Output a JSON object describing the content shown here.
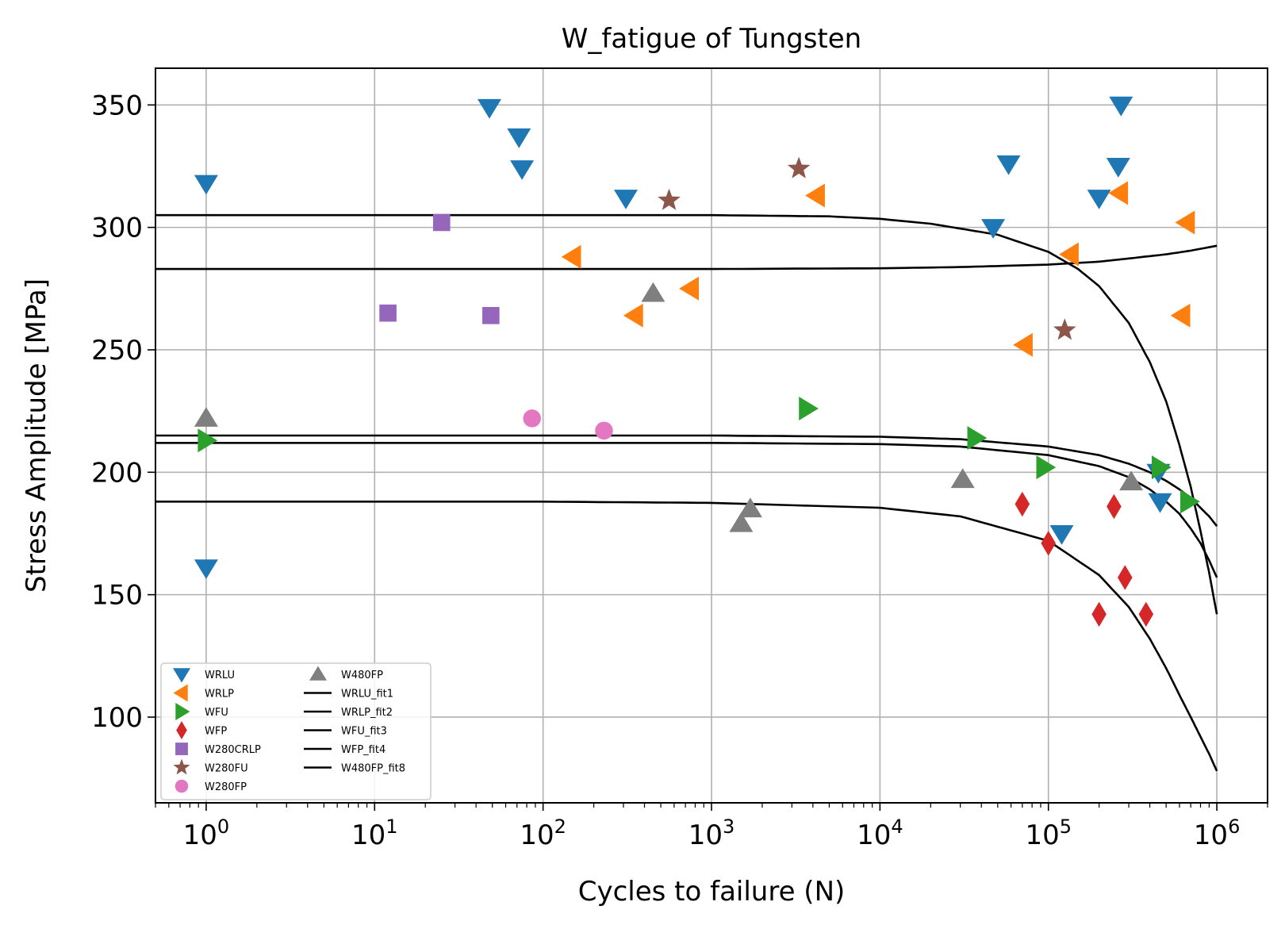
{
  "chart_data": {
    "type": "scatter",
    "title": "W_fatigue of Tungsten",
    "xlabel": "Cycles to failure (N)",
    "ylabel": "Stress Amplitude [MPa]",
    "xscale": "log",
    "xlim": [
      0.5,
      2000000
    ],
    "ylim": [
      65,
      365
    ],
    "grid": true,
    "legend_position": "lower-left",
    "xtick_labels": [
      {
        "base": "10",
        "exp": "0",
        "value": 1
      },
      {
        "base": "10",
        "exp": "1",
        "value": 10
      },
      {
        "base": "10",
        "exp": "2",
        "value": 100
      },
      {
        "base": "10",
        "exp": "3",
        "value": 1000
      },
      {
        "base": "10",
        "exp": "4",
        "value": 10000
      },
      {
        "base": "10",
        "exp": "5",
        "value": 100000
      },
      {
        "base": "10",
        "exp": "6",
        "value": 1000000
      }
    ],
    "ytick_labels": [
      "100",
      "150",
      "200",
      "250",
      "300",
      "350"
    ],
    "yticks": [
      100,
      150,
      200,
      250,
      300,
      350
    ],
    "series": [
      {
        "name": "WRLU",
        "marker": "triangle-down",
        "color": "#1f77b4",
        "points": [
          [
            1,
            318
          ],
          [
            1,
            161
          ],
          [
            48,
            349
          ],
          [
            72,
            337
          ],
          [
            75,
            324
          ],
          [
            310,
            312
          ],
          [
            47000,
            300
          ],
          [
            58000,
            326
          ],
          [
            120000,
            175
          ],
          [
            200000,
            312
          ],
          [
            270000,
            350
          ],
          [
            260000,
            325
          ],
          [
            450000,
            200
          ],
          [
            460000,
            188
          ]
        ]
      },
      {
        "name": "WRLP",
        "marker": "triangle-left",
        "color": "#ff7f0e",
        "points": [
          [
            150,
            288
          ],
          [
            350,
            264
          ],
          [
            750,
            275
          ],
          [
            4200,
            313
          ],
          [
            72000,
            252
          ],
          [
            135000,
            289
          ],
          [
            265000,
            314
          ],
          [
            660000,
            302
          ],
          [
            620000,
            264
          ]
        ]
      },
      {
        "name": "WFU",
        "marker": "triangle-right",
        "color": "#2ca02c",
        "points": [
          [
            1,
            213
          ],
          [
            3700,
            226
          ],
          [
            37000,
            214
          ],
          [
            95000,
            202
          ],
          [
            460000,
            202
          ],
          [
            680000,
            188
          ]
        ]
      },
      {
        "name": "WFP",
        "marker": "diamond",
        "color": "#d62728",
        "points": [
          [
            70000,
            187
          ],
          [
            100000,
            171
          ],
          [
            245000,
            186
          ],
          [
            200000,
            142
          ],
          [
            285000,
            157
          ],
          [
            380000,
            142
          ]
        ]
      },
      {
        "name": "W280CRLP",
        "marker": "square",
        "color": "#9467bd",
        "points": [
          [
            12,
            265
          ],
          [
            25,
            302
          ],
          [
            49,
            264
          ]
        ]
      },
      {
        "name": "W280FU",
        "marker": "star",
        "color": "#8c564b",
        "points": [
          [
            560,
            311
          ],
          [
            3300,
            324
          ],
          [
            125000,
            258
          ]
        ]
      },
      {
        "name": "W280FP",
        "marker": "circle",
        "color": "#e377c2",
        "points": [
          [
            86,
            222
          ],
          [
            230,
            217
          ]
        ]
      },
      {
        "name": "W480FP",
        "marker": "triangle-up",
        "color": "#7f7f7f",
        "points": [
          [
            1,
            222
          ],
          [
            450,
            273
          ],
          [
            1500,
            179
          ],
          [
            1700,
            185
          ],
          [
            31000,
            197
          ],
          [
            310000,
            196
          ]
        ]
      }
    ],
    "fits": [
      {
        "name": "WRLU_fit1",
        "color": "#000000",
        "x": [
          0.5,
          10,
          100,
          1000,
          5000,
          10000,
          20000,
          50000,
          100000,
          150000,
          200000,
          300000,
          400000,
          500000,
          600000,
          700000,
          800000,
          900000,
          1000000
        ],
        "y": [
          305,
          305,
          305,
          305,
          304.5,
          303.5,
          301.5,
          297,
          290,
          283,
          276,
          261,
          245,
          229,
          211,
          194,
          176,
          159,
          142
        ]
      },
      {
        "name": "WRLP_fit2",
        "color": "#000000",
        "x": [
          0.5,
          10,
          100,
          1000,
          10000,
          30000,
          100000,
          200000,
          300000,
          500000,
          700000,
          1000000
        ],
        "y": [
          283,
          283,
          283,
          283,
          283.3,
          283.8,
          284.8,
          286,
          287.3,
          289,
          290.5,
          292.5
        ]
      },
      {
        "name": "WFU_fit3",
        "color": "#000000",
        "x": [
          0.5,
          10,
          100,
          1000,
          10000,
          30000,
          100000,
          200000,
          300000,
          400000,
          500000,
          600000,
          700000,
          800000,
          900000,
          1000000
        ],
        "y": [
          215,
          215,
          215,
          215,
          214.5,
          213.5,
          210.5,
          207,
          203.5,
          200,
          196.5,
          193,
          189.5,
          185.5,
          182,
          178
        ]
      },
      {
        "name": "WFP_fit4",
        "color": "#000000",
        "x": [
          0.5,
          10,
          100,
          1000,
          10000,
          30000,
          100000,
          200000,
          300000,
          400000,
          500000,
          600000,
          700000,
          800000,
          900000,
          1000000
        ],
        "y": [
          188,
          188,
          188,
          187.5,
          185.5,
          182,
          172,
          158,
          145,
          132,
          120,
          109,
          100,
          92,
          85,
          78
        ]
      },
      {
        "name": "W480FP_fit8",
        "color": "#000000",
        "x": [
          0.5,
          10,
          100,
          1000,
          10000,
          30000,
          100000,
          200000,
          300000,
          400000,
          500000,
          600000,
          700000,
          800000,
          900000,
          1000000
        ],
        "y": [
          212,
          212,
          212,
          212,
          211.5,
          210.5,
          207,
          202.5,
          198,
          193,
          188,
          183,
          177,
          171,
          164,
          157
        ]
      }
    ]
  }
}
